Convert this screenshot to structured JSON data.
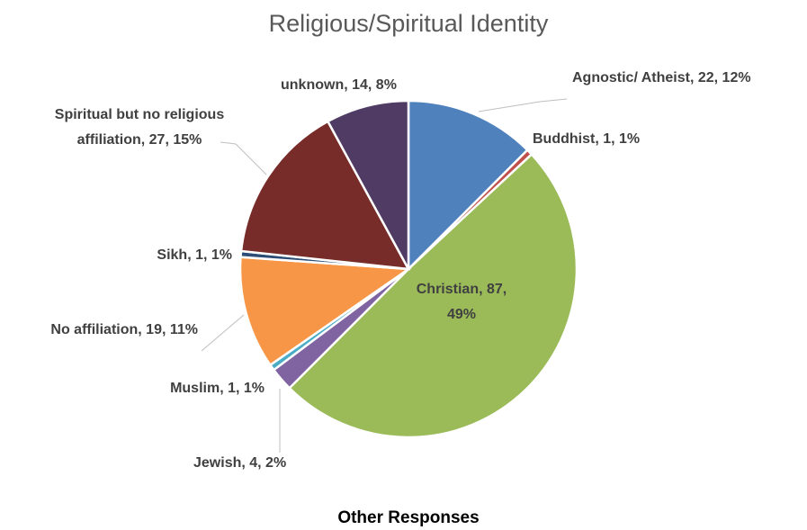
{
  "chart_data": {
    "type": "pie",
    "title": "Religious/Spiritual Identity",
    "values": [
      22,
      1,
      87,
      4,
      1,
      19,
      1,
      27,
      14
    ],
    "value_labels": [
      [
        "Agnostic/ Atheist, 22, 12%"
      ],
      [
        "Buddhist, 1, 1%"
      ],
      [
        "Christian, 87,",
        "49%"
      ],
      [
        "Jewish, 4, 2%"
      ],
      [
        "Muslim, 1, 1%"
      ],
      [
        "No affiliation, 19, 11%"
      ],
      [
        "Sikh, 1, 1%"
      ],
      [
        "Spiritual but no religious",
        "affiliation, 27, 15%"
      ],
      [
        "unknown, 14, 8%"
      ]
    ],
    "colors": [
      "#4f81bd",
      "#c0504d",
      "#9bbb59",
      "#8064a2",
      "#4bacc6",
      "#f79646",
      "#2c4d75",
      "#772c2a",
      "#4f3b63"
    ],
    "caption": "Other Responses"
  }
}
